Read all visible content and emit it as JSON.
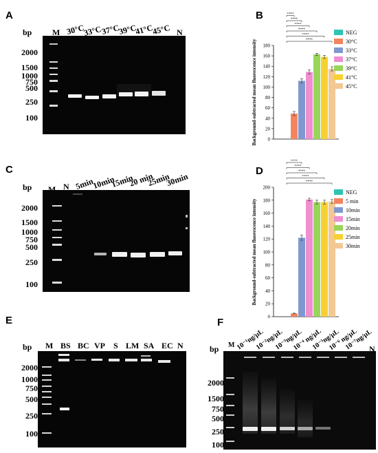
{
  "panels": {
    "A": {
      "label": "A",
      "bp": "bp",
      "ladder": [
        "2000",
        "1500",
        "1000",
        "750",
        "500",
        "250",
        "100"
      ],
      "lanes": [
        "M",
        "30°C",
        "33°C",
        "37°C",
        "39°C",
        "41°C",
        "45°C",
        "N"
      ]
    },
    "B": {
      "label": "B"
    },
    "C": {
      "label": "C",
      "bp": "bp",
      "ladder": [
        "2000",
        "1500",
        "1000",
        "750",
        "500",
        "250",
        "100"
      ],
      "lanes": [
        "M",
        "N",
        "5min",
        "10min",
        "15min",
        "20 min",
        "25min",
        "30min"
      ]
    },
    "D": {
      "label": "D"
    },
    "E": {
      "label": "E",
      "bp": "bp",
      "ladder": [
        "2000",
        "1000",
        "750",
        "500",
        "250",
        "100"
      ],
      "lanes": [
        "M",
        "BS",
        "BC",
        "VP",
        "S",
        "LM",
        "SA",
        "EC",
        "N"
      ]
    },
    "F": {
      "label": "F",
      "bp": "bp",
      "ladder": [
        "2000",
        "1500",
        "750",
        "500",
        "250",
        "100"
      ],
      "lanes": [
        "M",
        "10⁻¹ng/μL",
        "10⁻²ng/μL",
        "10⁻³ng/μL",
        "10⁻⁴ ng/μL",
        "10⁻⁵ng/μL",
        "10⁻⁶ ng/μL",
        "10⁻⁷ng/μL",
        "N"
      ]
    }
  },
  "chart_data": [
    {
      "id": "B",
      "type": "bar",
      "ylabel": "Background-subtracted mean fluorescence intensity",
      "ylim": [
        0,
        180
      ],
      "yticks": [
        0,
        20,
        40,
        60,
        80,
        100,
        120,
        140,
        160,
        180
      ],
      "categories": [
        "NEG",
        "30°C",
        "33°C",
        "37°C",
        "39°C",
        "41°C",
        "45°C"
      ],
      "values": [
        0,
        49,
        112,
        129,
        163,
        158,
        135
      ],
      "errors": [
        0,
        4,
        4,
        4,
        2,
        3,
        4
      ],
      "colors": [
        "#2fc4b2",
        "#f4845f",
        "#7f98cf",
        "#ee8fd0",
        "#98d65a",
        "#f7d033",
        "#f2c993"
      ],
      "sig_label": "****",
      "legend": [
        "NEG",
        "30°C",
        "33°C",
        "37°C",
        "39°C",
        "41°C",
        "45°C"
      ],
      "legend_position": "right"
    },
    {
      "id": "D",
      "type": "bar",
      "ylabel": "Background-subtracted mean fluorescence intensity",
      "ylim": [
        0,
        200
      ],
      "yticks": [
        0,
        20,
        40,
        60,
        80,
        100,
        120,
        140,
        160,
        180,
        200
      ],
      "categories": [
        "NEG",
        "5 min",
        "10min",
        "15min",
        "20min",
        "25min",
        "30min"
      ],
      "values": [
        0,
        5,
        122,
        181,
        177,
        177,
        178
      ],
      "errors": [
        0,
        0.5,
        4,
        2,
        3,
        3,
        3
      ],
      "colors": [
        "#2fc4b2",
        "#f4845f",
        "#7f98cf",
        "#ee8fd0",
        "#98d65a",
        "#f7d033",
        "#f2c993"
      ],
      "sig_label": "****",
      "legend": [
        "NEG",
        "5 min",
        "10min",
        "15min",
        "20min",
        "25min",
        "30min"
      ],
      "legend_position": "right"
    }
  ]
}
